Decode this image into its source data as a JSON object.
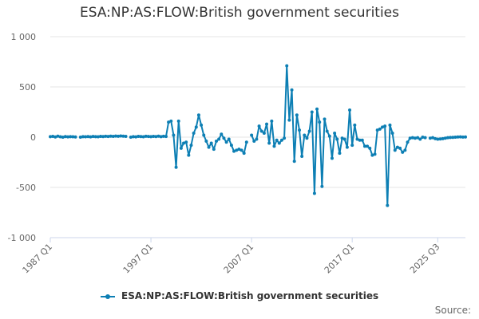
{
  "chart_data": {
    "type": "line",
    "title": "ESA:NP:AS:FLOW:British government securities",
    "xlabel": "",
    "ylabel": "",
    "ylim": [
      -1000,
      1000
    ],
    "y_ticks": [
      1000,
      500,
      0,
      -500,
      -1000
    ],
    "y_tick_labels": [
      "1 000",
      "500",
      "0",
      "-500",
      "-1 000"
    ],
    "x_tick_labels": [
      "1987 Q1",
      "1997 Q1",
      "2007 Q1",
      "2017 Q1",
      "2025 Q3"
    ],
    "x_tick_index": [
      0,
      40,
      80,
      120,
      154
    ],
    "grid": true,
    "legend_position": "bottom",
    "series": [
      {
        "name": "ESA:NP:AS:FLOW:British government securities",
        "color": "#0d7fb4",
        "values": [
          5,
          8,
          2,
          10,
          4,
          0,
          6,
          3,
          5,
          4,
          2,
          null,
          0,
          5,
          4,
          6,
          3,
          7,
          5,
          4,
          8,
          6,
          9,
          7,
          10,
          8,
          11,
          9,
          12,
          10,
          8,
          null,
          0,
          5,
          3,
          8,
          6,
          4,
          9,
          7,
          5,
          8,
          6,
          10,
          5,
          9,
          7,
          150,
          160,
          20,
          -300,
          160,
          -110,
          -60,
          -50,
          -180,
          -80,
          40,
          100,
          220,
          120,
          20,
          -40,
          -100,
          -60,
          -120,
          -40,
          -20,
          30,
          -10,
          -50,
          -20,
          -80,
          -140,
          -130,
          -120,
          -130,
          -160,
          -50,
          null,
          20,
          -40,
          -20,
          110,
          60,
          40,
          130,
          -60,
          160,
          -90,
          -30,
          -60,
          -30,
          -10,
          710,
          170,
          470,
          -240,
          220,
          70,
          -190,
          20,
          -10,
          60,
          250,
          -560,
          280,
          150,
          -490,
          180,
          60,
          10,
          -210,
          40,
          -20,
          -160,
          -10,
          -20,
          -100,
          270,
          -80,
          120,
          -20,
          -30,
          -30,
          -90,
          -90,
          -110,
          -180,
          -170,
          70,
          80,
          100,
          110,
          -680,
          120,
          40,
          -130,
          -100,
          -110,
          -150,
          -130,
          -50,
          -10,
          -5,
          -10,
          -5,
          -20,
          0,
          -5,
          null,
          -10,
          -5,
          -15,
          -20,
          -18,
          -15,
          -10,
          -5,
          -3,
          -2,
          0,
          2,
          3,
          1,
          2
        ]
      }
    ]
  },
  "credits": "Source:"
}
